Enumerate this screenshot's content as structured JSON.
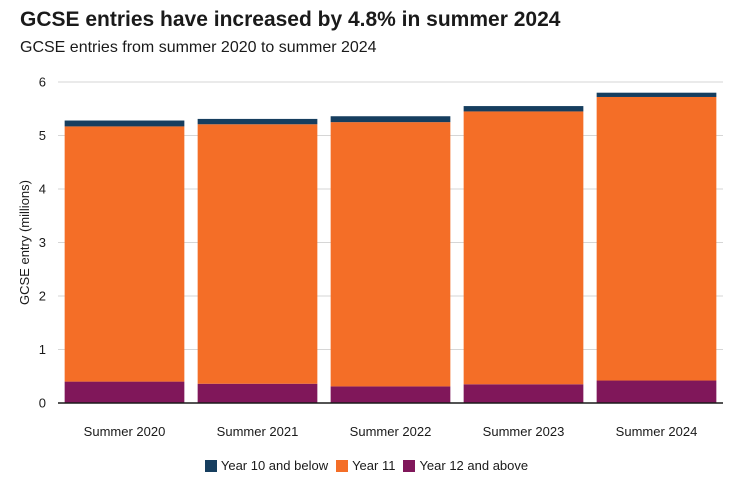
{
  "header": {
    "title": "GCSE entries have increased by 4.8% in summer 2024",
    "subtitle": "GCSE entries from summer 2020 to summer 2024"
  },
  "chart_data": {
    "type": "bar",
    "stacked": true,
    "ylabel": "GCSE entry (millions)",
    "xlabel": "",
    "ylim": [
      0,
      6
    ],
    "yticks": [
      "0",
      "1",
      "2",
      "3",
      "4",
      "5",
      "6"
    ],
    "grid": true,
    "legend_position": "bottom",
    "categories": [
      "Summer 2020",
      "Summer 2021",
      "Summer 2022",
      "Summer 2023",
      "Summer 2024"
    ],
    "series": [
      {
        "name": "Year 12 and above",
        "color": "#80175a",
        "values": [
          0.4,
          0.36,
          0.31,
          0.35,
          0.42
        ]
      },
      {
        "name": "Year 11",
        "color": "#f46e27",
        "values": [
          4.77,
          4.85,
          4.94,
          5.1,
          5.3
        ]
      },
      {
        "name": "Year 10 and below",
        "color": "#163e5f",
        "values": [
          0.11,
          0.1,
          0.11,
          0.1,
          0.08
        ]
      }
    ],
    "legend_order": [
      "Year 10 and below",
      "Year 11",
      "Year 12 and above"
    ]
  }
}
